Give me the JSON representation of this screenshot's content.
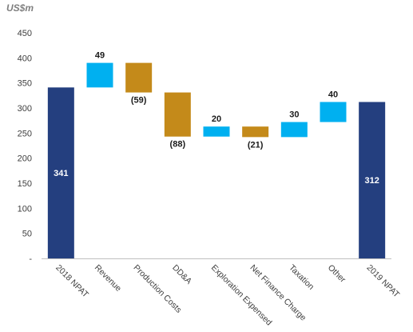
{
  "chart_data": {
    "type": "bar",
    "subtype": "waterfall",
    "unit_label": "US$m",
    "title": "",
    "xlabel": "",
    "ylabel": "",
    "ylim": [
      0,
      450
    ],
    "y_ticks": [
      {
        "value": 0,
        "label": "-"
      },
      {
        "value": 50,
        "label": "50"
      },
      {
        "value": 100,
        "label": "100"
      },
      {
        "value": 150,
        "label": "150"
      },
      {
        "value": 200,
        "label": "200"
      },
      {
        "value": 250,
        "label": "250"
      },
      {
        "value": 300,
        "label": "300"
      },
      {
        "value": 350,
        "label": "350"
      },
      {
        "value": 400,
        "label": "400"
      },
      {
        "value": 450,
        "label": "450"
      }
    ],
    "grid": false,
    "categories": [
      "2018 NPAT",
      "Revenue",
      "Production Costs",
      "DD&A",
      "Exploration Expensed",
      "Net Finance Charge",
      "Taxation",
      "Other",
      "2019 NPAT"
    ],
    "values": [
      341,
      49,
      -59,
      -88,
      20,
      -21,
      30,
      40,
      312
    ],
    "data_labels": [
      "341",
      "49",
      "(59)",
      "(88)",
      "20",
      "(21)",
      "30",
      "40",
      "312"
    ],
    "bar_kinds": [
      "total",
      "change",
      "change",
      "change",
      "change",
      "change",
      "change",
      "change",
      "total"
    ],
    "colors": {
      "total": "#243f7f",
      "increase": "#00b0f0",
      "decrease": "#c48a1a",
      "axis": "#bfbfbf"
    }
  }
}
